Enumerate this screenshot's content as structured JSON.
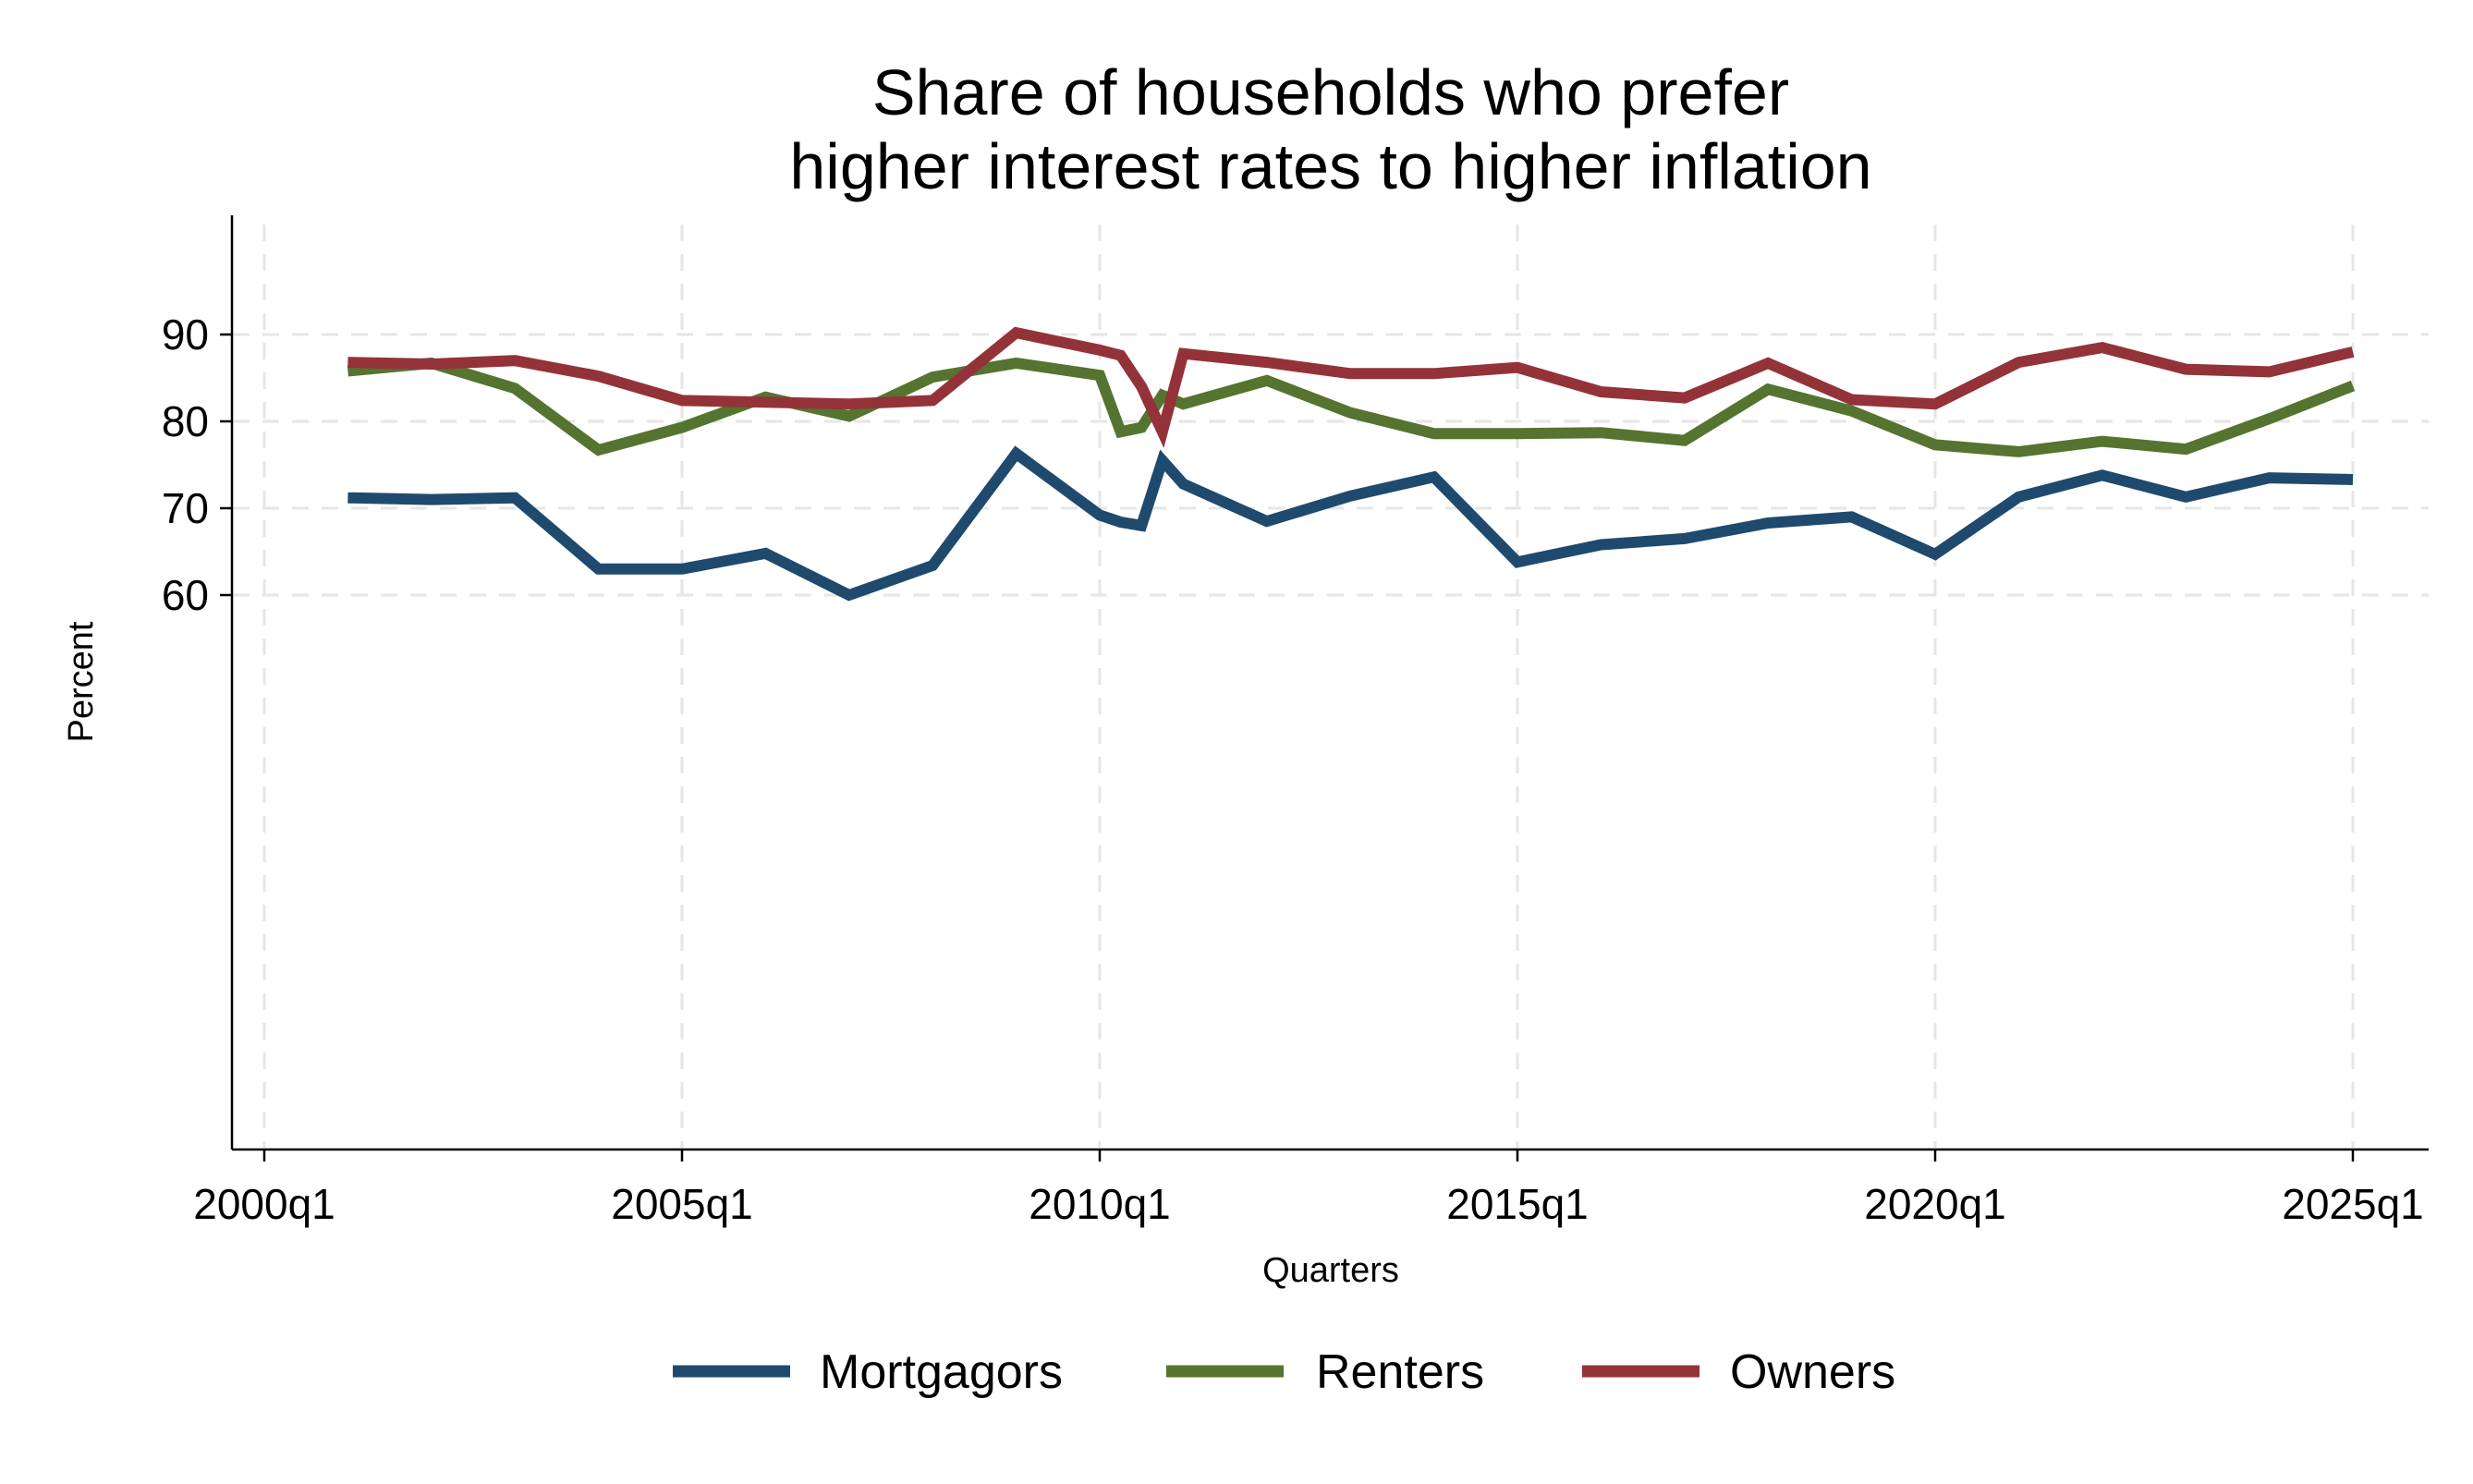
{
  "chart_data": {
    "type": "line",
    "title": [
      "Share of households who prefer",
      "higher interest rates to higher inflation"
    ],
    "xlabel": "Quarters",
    "ylabel": "Percent",
    "x_ticks": [
      "2000q1",
      "2005q1",
      "2010q1",
      "2015q1",
      "2020q1",
      "2025q1"
    ],
    "y_ticks": [
      60,
      70,
      80,
      90
    ],
    "xlim": [
      "2000q1",
      "2025q3"
    ],
    "ylim": [
      0,
      105
    ],
    "grid": true,
    "legend_position": "bottom",
    "series": [
      {
        "name": "Mortgagors",
        "color": "#1f4a6e",
        "points": [
          [
            "2001q1",
            71.2
          ],
          [
            "2002q1",
            71.0
          ],
          [
            "2003q1",
            71.2
          ],
          [
            "2004q1",
            63.0
          ],
          [
            "2005q1",
            63.0
          ],
          [
            "2006q1",
            64.8
          ],
          [
            "2007q1",
            60.0
          ],
          [
            "2008q1",
            63.4
          ],
          [
            "2009q1",
            76.3
          ],
          [
            "2010q1",
            69.2
          ],
          [
            "2010q2",
            68.4
          ],
          [
            "2010q3",
            68.0
          ],
          [
            "2010q4",
            75.5
          ],
          [
            "2011q1",
            72.8
          ],
          [
            "2012q1",
            68.5
          ],
          [
            "2013q1",
            71.4
          ],
          [
            "2014q1",
            73.6
          ],
          [
            "2015q1",
            63.8
          ],
          [
            "2016q1",
            65.8
          ],
          [
            "2017q1",
            66.5
          ],
          [
            "2018q1",
            68.3
          ],
          [
            "2019q1",
            69.0
          ],
          [
            "2020q1",
            64.7
          ],
          [
            "2021q1",
            71.3
          ],
          [
            "2022q1",
            73.8
          ],
          [
            "2023q1",
            71.3
          ],
          [
            "2024q1",
            73.5
          ],
          [
            "2025q1",
            73.3
          ]
        ]
      },
      {
        "name": "Renters",
        "color": "#55742f",
        "points": [
          [
            "2001q1",
            85.8
          ],
          [
            "2002q1",
            86.7
          ],
          [
            "2003q1",
            83.8
          ],
          [
            "2004q1",
            76.7
          ],
          [
            "2005q1",
            79.3
          ],
          [
            "2006q1",
            82.8
          ],
          [
            "2007q1",
            80.6
          ],
          [
            "2008q1",
            85.1
          ],
          [
            "2009q1",
            86.7
          ],
          [
            "2010q1",
            85.3
          ],
          [
            "2010q2",
            78.8
          ],
          [
            "2010q3",
            79.3
          ],
          [
            "2010q4",
            83.0
          ],
          [
            "2011q1",
            82.0
          ],
          [
            "2012q1",
            84.7
          ],
          [
            "2013q1",
            81.0
          ],
          [
            "2014q1",
            78.6
          ],
          [
            "2015q1",
            78.6
          ],
          [
            "2016q1",
            78.7
          ],
          [
            "2017q1",
            77.8
          ],
          [
            "2018q1",
            83.7
          ],
          [
            "2019q1",
            81.2
          ],
          [
            "2020q1",
            77.3
          ],
          [
            "2021q1",
            76.5
          ],
          [
            "2022q1",
            77.7
          ],
          [
            "2023q1",
            76.8
          ],
          [
            "2024q1",
            80.3
          ],
          [
            "2025q1",
            84.1
          ]
        ]
      },
      {
        "name": "Owners",
        "color": "#933339",
        "points": [
          [
            "2001q1",
            86.8
          ],
          [
            "2002q1",
            86.6
          ],
          [
            "2003q1",
            87.0
          ],
          [
            "2004q1",
            85.2
          ],
          [
            "2005q1",
            82.4
          ],
          [
            "2006q1",
            82.2
          ],
          [
            "2007q1",
            82.0
          ],
          [
            "2008q1",
            82.4
          ],
          [
            "2009q1",
            90.2
          ],
          [
            "2010q1",
            88.2
          ],
          [
            "2010q2",
            87.6
          ],
          [
            "2010q3",
            84.0
          ],
          [
            "2010q4",
            78.8
          ],
          [
            "2011q1",
            87.8
          ],
          [
            "2012q1",
            86.8
          ],
          [
            "2013q1",
            85.5
          ],
          [
            "2014q1",
            85.5
          ],
          [
            "2015q1",
            86.2
          ],
          [
            "2016q1",
            83.4
          ],
          [
            "2017q1",
            82.7
          ],
          [
            "2018q1",
            86.7
          ],
          [
            "2019q1",
            82.5
          ],
          [
            "2020q1",
            82.0
          ],
          [
            "2021q1",
            86.8
          ],
          [
            "2022q1",
            88.5
          ],
          [
            "2023q1",
            86.0
          ],
          [
            "2024q1",
            85.7
          ],
          [
            "2025q1",
            88.0
          ]
        ]
      }
    ]
  }
}
